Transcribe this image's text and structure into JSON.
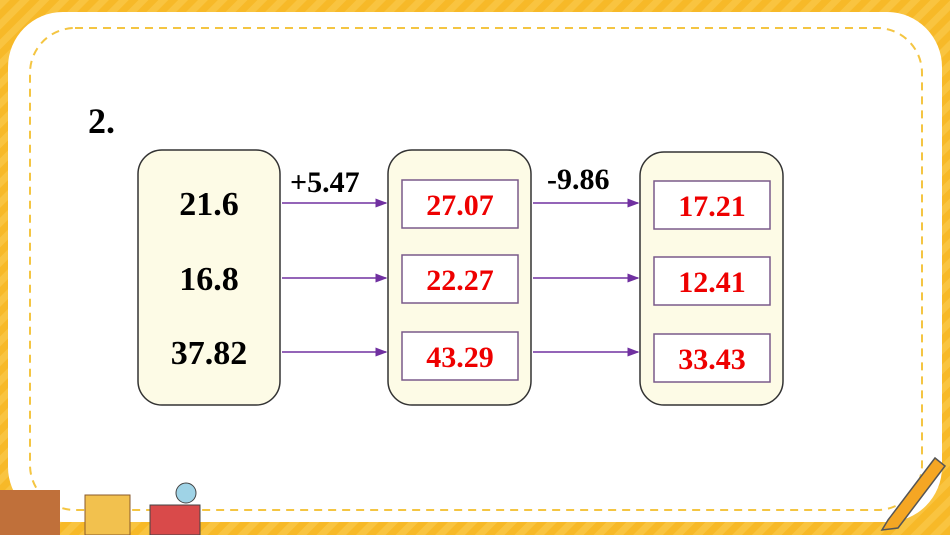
{
  "problem": {
    "number": "2.",
    "operations": [
      "+5.47",
      "-9.86"
    ],
    "columns": [
      [
        "21.6",
        "16.8",
        "37.82"
      ],
      [
        "27.07",
        "22.27",
        "43.29"
      ],
      [
        "17.21",
        "12.41",
        "33.43"
      ]
    ]
  }
}
